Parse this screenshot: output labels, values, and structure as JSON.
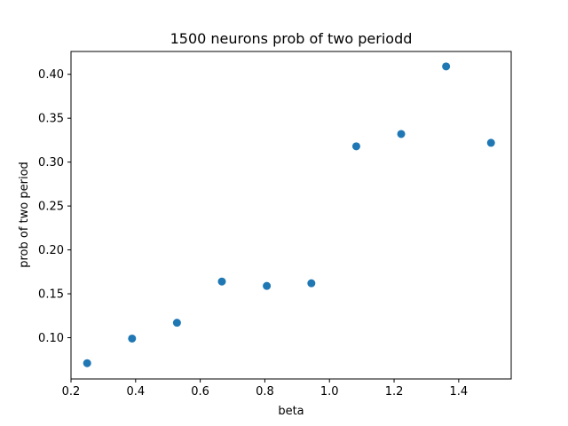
{
  "chart_data": {
    "type": "scatter",
    "title": "1500 neurons prob of two periodd",
    "xlabel": "beta",
    "ylabel": "prob of two period",
    "xlim": [
      0.2,
      1.5625
    ],
    "ylim": [
      0.053,
      0.426
    ],
    "x_ticks": [
      0.2,
      0.4,
      0.6,
      0.8,
      1.0,
      1.2,
      1.4
    ],
    "x_tick_labels": [
      "0.2",
      "0.4",
      "0.6",
      "0.8",
      "1.0",
      "1.2",
      "1.4"
    ],
    "y_ticks": [
      0.1,
      0.15,
      0.2,
      0.25,
      0.3,
      0.35,
      0.4
    ],
    "y_tick_labels": [
      "0.10",
      "0.15",
      "0.20",
      "0.25",
      "0.30",
      "0.35",
      "0.40"
    ],
    "grid": false,
    "marker_color": "#1f77b4",
    "series": [
      {
        "x": [
          0.25,
          0.389,
          0.528,
          0.667,
          0.806,
          0.944,
          1.083,
          1.222,
          1.361,
          1.5
        ],
        "y": [
          0.071,
          0.099,
          0.117,
          0.164,
          0.159,
          0.162,
          0.318,
          0.332,
          0.409,
          0.322
        ]
      }
    ]
  }
}
